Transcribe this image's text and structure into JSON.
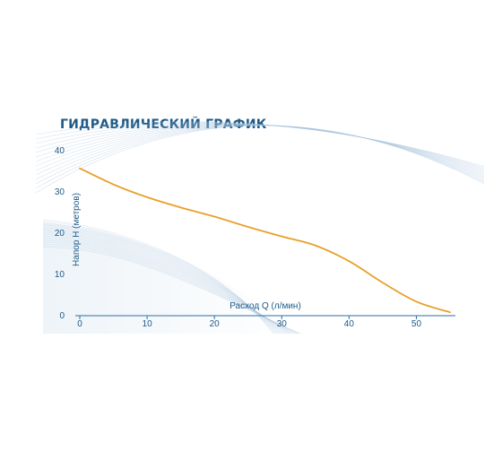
{
  "chart_data": {
    "type": "line",
    "title": "ГИДРАВЛИЧЕСКИЙ ГРАФИК",
    "xlabel": "Расход Q (л/мин)",
    "ylabel": "Напор Н (метров)",
    "xlim": [
      0,
      55
    ],
    "ylim": [
      0,
      40
    ],
    "x_ticks": [
      0,
      10,
      20,
      30,
      40,
      50
    ],
    "y_ticks": [
      0,
      10,
      20,
      30,
      40
    ],
    "grid": false,
    "legend": "none",
    "series": [
      {
        "x": [
          0,
          5,
          10,
          15,
          20,
          25,
          30,
          35,
          40,
          45,
          50,
          55
        ],
        "y": [
          35.5,
          31.6,
          28.5,
          26.0,
          23.8,
          21.3,
          19.0,
          16.8,
          13.0,
          7.8,
          3.2,
          0.6
        ]
      }
    ],
    "colors": {
      "line": "#e8a02a",
      "text": "#1d5a86",
      "axis": "#2a6ea8",
      "swoosh": "#a8c4dc"
    }
  }
}
